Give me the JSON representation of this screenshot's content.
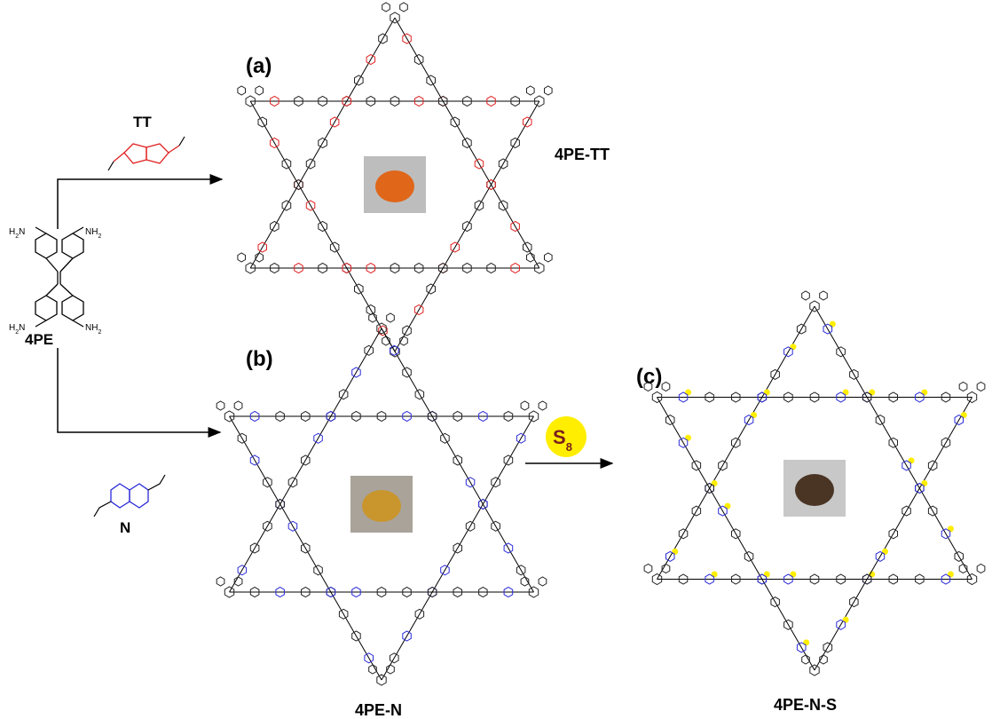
{
  "panels": {
    "a": {
      "label": "(a)",
      "product": "4PE-TT"
    },
    "b": {
      "label": "(b)",
      "product": "4PE-N"
    },
    "c": {
      "label": "(c)",
      "product": "4PE-N-S"
    }
  },
  "reagents": {
    "tt": "TT",
    "n": "N",
    "s8": {
      "symbol": "S",
      "subscript": "8"
    }
  },
  "monomer": {
    "name": "4PE",
    "amine_left": [
      "H",
      "2",
      "N"
    ],
    "amine_right": [
      "NH",
      "2"
    ]
  }
}
